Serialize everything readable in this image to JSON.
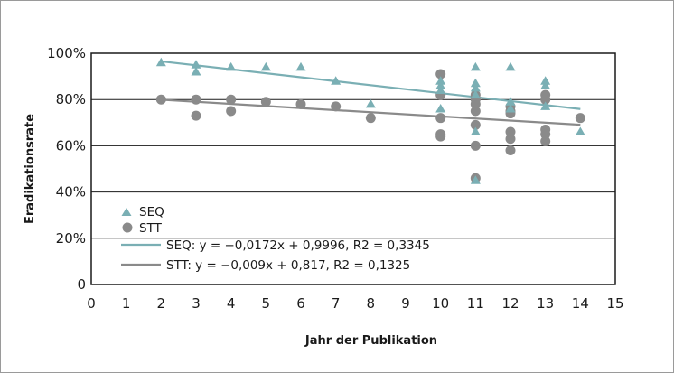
{
  "chart_data": {
    "type": "scatter",
    "xlabel": "Jahr der Publikation",
    "ylabel": "Eradikationsrate",
    "xlim": [
      0,
      15
    ],
    "ylim": [
      0,
      1
    ],
    "x_ticks": [
      "0",
      "1",
      "2",
      "3",
      "4",
      "5",
      "6",
      "7",
      "8",
      "9",
      "10",
      "11",
      "12",
      "13",
      "14",
      "15"
    ],
    "y_ticks": [
      "0",
      "20%",
      "40%",
      "60%",
      "80%",
      "100%"
    ],
    "y_tick_values": [
      0,
      0.2,
      0.4,
      0.6,
      0.8,
      1.0
    ],
    "grid": "horizontal",
    "legend_position": "bottom-left",
    "series": [
      {
        "name": "SEQ",
        "marker": "triangle",
        "color": "#7aafb4",
        "points": [
          [
            2,
            0.96
          ],
          [
            3,
            0.95
          ],
          [
            3,
            0.92
          ],
          [
            4,
            0.94
          ],
          [
            5,
            0.94
          ],
          [
            6,
            0.94
          ],
          [
            7,
            0.88
          ],
          [
            8,
            0.78
          ],
          [
            10,
            0.88
          ],
          [
            10,
            0.86
          ],
          [
            10,
            0.84
          ],
          [
            10,
            0.76
          ],
          [
            11,
            0.94
          ],
          [
            11,
            0.87
          ],
          [
            11,
            0.85
          ],
          [
            11,
            0.82
          ],
          [
            11,
            0.66
          ],
          [
            11,
            0.45
          ],
          [
            12,
            0.94
          ],
          [
            12,
            0.79
          ],
          [
            12,
            0.76
          ],
          [
            13,
            0.88
          ],
          [
            13,
            0.86
          ],
          [
            13,
            0.77
          ],
          [
            14,
            0.66
          ]
        ]
      },
      {
        "name": "STT",
        "marker": "circle",
        "color": "#8a8a8a",
        "points": [
          [
            2,
            0.8
          ],
          [
            3,
            0.8
          ],
          [
            3,
            0.73
          ],
          [
            4,
            0.8
          ],
          [
            4,
            0.75
          ],
          [
            5,
            0.79
          ],
          [
            6,
            0.78
          ],
          [
            7,
            0.77
          ],
          [
            8,
            0.72
          ],
          [
            10,
            0.91
          ],
          [
            10,
            0.82
          ],
          [
            10,
            0.72
          ],
          [
            10,
            0.65
          ],
          [
            10,
            0.64
          ],
          [
            11,
            0.82
          ],
          [
            11,
            0.8
          ],
          [
            11,
            0.78
          ],
          [
            11,
            0.75
          ],
          [
            11,
            0.69
          ],
          [
            11,
            0.6
          ],
          [
            11,
            0.46
          ],
          [
            12,
            0.77
          ],
          [
            12,
            0.75
          ],
          [
            12,
            0.74
          ],
          [
            12,
            0.66
          ],
          [
            12,
            0.63
          ],
          [
            12,
            0.58
          ],
          [
            13,
            0.82
          ],
          [
            13,
            0.8
          ],
          [
            13,
            0.67
          ],
          [
            13,
            0.65
          ],
          [
            13,
            0.62
          ],
          [
            14,
            0.72
          ]
        ]
      }
    ],
    "trendlines": [
      {
        "name": "SEQ: y = −0,0172x + 0,9996, R2 = 0,3345",
        "slope": -0.0172,
        "intercept": 0.9996,
        "x_range": [
          2,
          14
        ],
        "color": "#7aafb4"
      },
      {
        "name": "STT: y = −0,009x + 0,817, R2 = 0,1325",
        "slope": -0.009,
        "intercept": 0.817,
        "x_range": [
          2,
          14
        ],
        "color": "#8a8a8a"
      }
    ]
  }
}
